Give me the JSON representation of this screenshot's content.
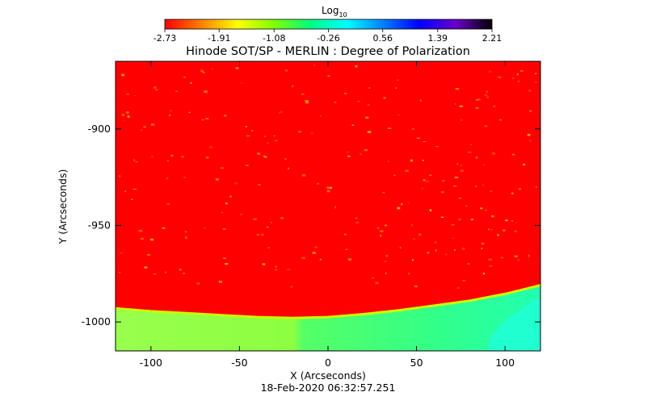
{
  "colorbar": {
    "label": "Log",
    "label_sub": "10",
    "tick_labels": [
      "-2.73",
      "-1.91",
      "-1.08",
      "-0.26",
      "0.56",
      "1.39",
      "2.21"
    ],
    "range": [
      -2.73,
      2.21
    ],
    "colormap": [
      "#ff0000",
      "#ff8000",
      "#ffff00",
      "#80ff00",
      "#00ff80",
      "#00ffff",
      "#0080ff",
      "#0000ff",
      "#6a00c8",
      "#000000"
    ]
  },
  "footer": {
    "timestamp": "18-Feb-2020 06:32:57.251"
  },
  "chart_data": {
    "type": "heatmap",
    "title": "Hinode SOT/SP - MERLIN : Degree of Polarization",
    "xlabel": "X (Arcseconds)",
    "ylabel": "Y (Arcseconds)",
    "xlim": [
      -120,
      120
    ],
    "ylim": [
      -1015,
      -865
    ],
    "x_ticks": [
      -100,
      -50,
      0,
      50,
      100
    ],
    "x_tick_labels": [
      "-100",
      "-50",
      "0",
      "50",
      "100"
    ],
    "y_ticks": [
      -900,
      -950,
      -1000
    ],
    "y_tick_labels": [
      "-900",
      "-950",
      "-1000"
    ],
    "regions": [
      {
        "name": "disk",
        "value_log10": -2.73,
        "color": "#ff0000"
      },
      {
        "name": "limb",
        "value_log10": -1.1,
        "color": "#80ff00"
      },
      {
        "name": "off-limb",
        "value_log10": -0.3,
        "color": "#00ffa0"
      }
    ],
    "limb_boundary": {
      "x": [
        -120,
        -100,
        -80,
        -60,
        -40,
        -20,
        0,
        20,
        40,
        60,
        80,
        100,
        120
      ],
      "y": [
        -993,
        -994.5,
        -995.5,
        -996.5,
        -997.5,
        -998,
        -997.5,
        -996,
        -994,
        -991.5,
        -989,
        -985.5,
        -981
      ]
    },
    "grid": false
  }
}
